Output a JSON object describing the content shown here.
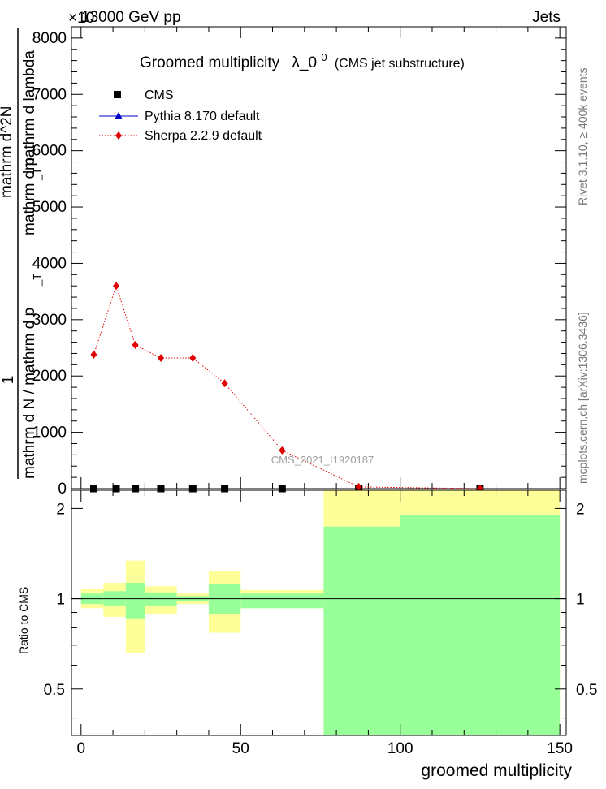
{
  "header": {
    "left": "13000 GeV pp",
    "right": "Jets"
  },
  "chart_data": [
    {
      "type": "line",
      "title": "Groomed multiplicity",
      "title_symbol": "λ_0",
      "title_symbol_sup": "0",
      "title_note": "(CMS jet substructure)",
      "y_exponent_label": "×10",
      "ylabel_parts": [
        "1",
        "mathrm d N / mathrm d p",
        "_T",
        "mathrm d^2N",
        "mathrm d p",
        "_T",
        "mathrm d lambda"
      ],
      "ylim": [
        0,
        8200
      ],
      "yticks": [
        0,
        1000,
        2000,
        3000,
        4000,
        5000,
        6000,
        7000,
        8000
      ],
      "ytick_labels": [
        "0",
        "1000",
        "2000",
        "3000",
        "4000",
        "5000",
        "6000",
        "7000",
        "8000"
      ],
      "xlim": [
        -3,
        152
      ],
      "legend": [
        {
          "name": "CMS",
          "marker": "square",
          "color": "#000000"
        },
        {
          "name": "Pythia 8.170 default",
          "marker": "triangle",
          "color": "#0000cc"
        },
        {
          "name": "Sherpa 2.2.9 default",
          "marker": "diamond",
          "color": "#e00000"
        }
      ],
      "series": [
        {
          "name": "CMS",
          "x": [
            4,
            11,
            17,
            25,
            35,
            45,
            63,
            87,
            125
          ],
          "values": [
            0,
            0,
            0,
            0,
            0,
            0,
            0,
            0,
            0
          ]
        },
        {
          "name": "Pythia 8.170 default",
          "x": [
            4,
            11,
            17,
            25,
            35,
            45,
            63,
            87,
            125
          ],
          "values": [
            0,
            0,
            0,
            0,
            0,
            0,
            0,
            0,
            0
          ]
        },
        {
          "name": "Sherpa 2.2.9 default",
          "x": [
            4,
            11,
            17,
            25,
            35,
            45,
            63,
            87,
            125
          ],
          "values": [
            2380,
            3600,
            2550,
            2320,
            2320,
            1870,
            680,
            30,
            0
          ]
        }
      ],
      "watermark": "CMS_2021_I1920187",
      "side_label_top": "Rivet 3.1.10, ≥ 400k events",
      "side_label_bottom": "mcplots.cern.ch [arXiv:1306.3436]"
    },
    {
      "type": "ratio",
      "ylabel": "Ratio to CMS",
      "ylim": [
        0.35,
        2.3
      ],
      "yticks": [
        0.5,
        1,
        2
      ],
      "ytick_labels": [
        "0.5",
        "1",
        "2"
      ],
      "xlim": [
        -3,
        152
      ],
      "xticks": [
        0,
        50,
        100,
        150
      ],
      "xtick_labels": [
        "0",
        "50",
        "100",
        "150"
      ],
      "xlabel": "groomed multiplicity",
      "reference": 1,
      "bands": [
        {
          "x0": 0,
          "x1": 7,
          "yellow": [
            0.93,
            1.08
          ],
          "green": [
            0.96,
            1.04
          ]
        },
        {
          "x0": 7,
          "x1": 14,
          "yellow": [
            0.87,
            1.13
          ],
          "green": [
            0.95,
            1.06
          ]
        },
        {
          "x0": 14,
          "x1": 20,
          "yellow": [
            0.66,
            1.34
          ],
          "green": [
            0.86,
            1.13
          ]
        },
        {
          "x0": 20,
          "x1": 30,
          "yellow": [
            0.89,
            1.1
          ],
          "green": [
            0.95,
            1.05
          ]
        },
        {
          "x0": 30,
          "x1": 40,
          "yellow": [
            0.96,
            1.04
          ],
          "green": [
            0.98,
            1.02
          ]
        },
        {
          "x0": 40,
          "x1": 50,
          "yellow": [
            0.77,
            1.24
          ],
          "green": [
            0.89,
            1.12
          ]
        },
        {
          "x0": 50,
          "x1": 76,
          "yellow": [
            0.93,
            1.07
          ],
          "green": [
            0.93,
            1.04
          ]
        },
        {
          "x0": 76,
          "x1": 100,
          "yellow": [
            0.35,
            2.3
          ],
          "green": [
            0.35,
            1.74
          ]
        },
        {
          "x0": 100,
          "x1": 150,
          "yellow": [
            0.35,
            2.3
          ],
          "green": [
            0.35,
            1.9
          ]
        }
      ]
    }
  ]
}
